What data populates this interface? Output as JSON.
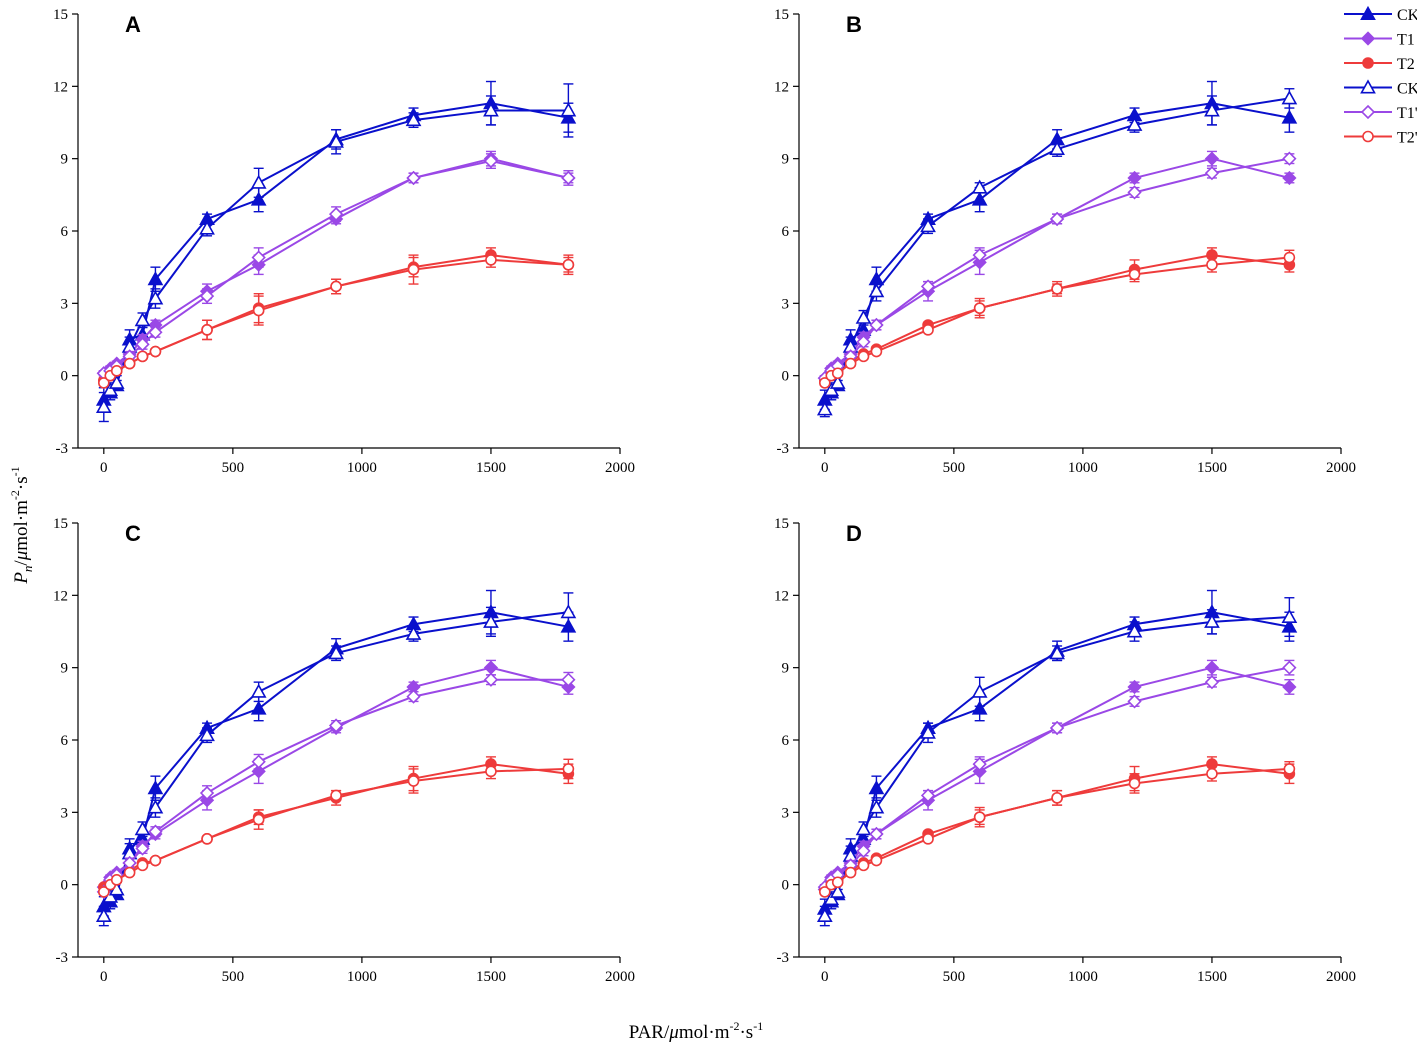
{
  "chart_data": {
    "type": "line",
    "xlabel": {
      "prefix": "PAR/",
      "mu": "μ",
      "unit": "mol·m",
      "exp1": "-2",
      "mid": "·s",
      "exp2": "-1"
    },
    "ylabel": {
      "symbol": "P",
      "sub": "n",
      "slash": "/",
      "mu": "μ",
      "unit": "mol·m",
      "exp1": "-2",
      "mid": "·s",
      "exp2": "-1"
    },
    "xlim": [
      -100,
      2000
    ],
    "ylim": [
      -3,
      15
    ],
    "xticks": [
      0,
      500,
      1000,
      1500,
      2000
    ],
    "yticks": [
      -3,
      0,
      3,
      6,
      9,
      12,
      15
    ],
    "legend": {
      "position": "top-right",
      "entries": [
        {
          "label": "CK",
          "series": "CK"
        },
        {
          "label": "T1",
          "series": "T1"
        },
        {
          "label": "T2",
          "series": "T2"
        },
        {
          "label": "CK'",
          "series": "CKp"
        },
        {
          "label": "T1'",
          "series": "T1p"
        },
        {
          "label": "T2'",
          "series": "T2p"
        }
      ]
    },
    "series_style": {
      "CK": {
        "color": "#0a10cc",
        "marker": "triangle",
        "filled": true
      },
      "T1": {
        "color": "#9a48e6",
        "marker": "diamond",
        "filled": true
      },
      "T2": {
        "color": "#ee3b3b",
        "marker": "circle",
        "filled": true
      },
      "CKp": {
        "color": "#0a10cc",
        "marker": "triangle",
        "filled": false
      },
      "T1p": {
        "color": "#9a48e6",
        "marker": "diamond",
        "filled": false
      },
      "T2p": {
        "color": "#ee3b3b",
        "marker": "circle",
        "filled": false
      }
    },
    "x": [
      0,
      25,
      50,
      100,
      150,
      200,
      400,
      600,
      900,
      1200,
      1500,
      1800
    ],
    "panels": [
      {
        "label": "A",
        "series": [
          {
            "name": "CK",
            "values": [
              -1.0,
              -0.7,
              -0.4,
              1.5,
              1.7,
              4.0,
              6.5,
              7.3,
              9.8,
              10.8,
              11.3,
              10.7
            ],
            "errors": [
              0.5,
              0.3,
              0.2,
              0.4,
              0.3,
              0.5,
              0.2,
              0.5,
              0.4,
              0.3,
              0.9,
              0.6
            ]
          },
          {
            "name": "T1",
            "values": [
              0.1,
              0.3,
              0.5,
              0.9,
              1.5,
              2.1,
              3.5,
              4.6,
              6.5,
              8.2,
              9.0,
              8.2
            ],
            "errors": [
              0.1,
              0.1,
              0.1,
              0.2,
              0.2,
              0.2,
              0.3,
              0.4,
              0.2,
              0.2,
              0.3,
              0.3
            ]
          },
          {
            "name": "T2",
            "values": [
              -0.2,
              0.0,
              0.2,
              0.5,
              0.8,
              1.0,
              1.9,
              2.8,
              3.7,
              4.5,
              5.0,
              4.6
            ],
            "errors": [
              0.1,
              0.1,
              0.1,
              0.1,
              0.1,
              0.1,
              0.4,
              0.6,
              0.3,
              0.4,
              0.3,
              0.3
            ]
          },
          {
            "name": "CKp",
            "values": [
              -1.3,
              -0.6,
              -0.3,
              1.2,
              2.3,
              3.2,
              6.1,
              8.0,
              9.7,
              10.6,
              11.0,
              11.0
            ],
            "errors": [
              0.6,
              0.3,
              0.3,
              0.4,
              0.3,
              0.4,
              0.3,
              0.6,
              0.5,
              0.3,
              0.6,
              1.1
            ]
          },
          {
            "name": "T1p",
            "values": [
              0.1,
              0.2,
              0.4,
              0.8,
              1.3,
              1.8,
              3.3,
              4.9,
              6.7,
              8.2,
              8.9,
              8.2
            ],
            "errors": [
              0.1,
              0.1,
              0.1,
              0.2,
              0.2,
              0.2,
              0.3,
              0.4,
              0.3,
              0.2,
              0.3,
              0.2
            ]
          },
          {
            "name": "T2p",
            "values": [
              -0.3,
              0.0,
              0.2,
              0.5,
              0.8,
              1.0,
              1.9,
              2.7,
              3.7,
              4.4,
              4.8,
              4.6
            ],
            "errors": [
              0.1,
              0.1,
              0.1,
              0.1,
              0.1,
              0.1,
              0.4,
              0.6,
              0.3,
              0.6,
              0.3,
              0.4
            ]
          }
        ]
      },
      {
        "label": "B",
        "series": [
          {
            "name": "CK",
            "values": [
              -1.0,
              -0.7,
              -0.4,
              1.5,
              1.9,
              4.0,
              6.5,
              7.3,
              9.8,
              10.8,
              11.3,
              10.7
            ],
            "errors": [
              0.4,
              0.3,
              0.2,
              0.4,
              0.3,
              0.5,
              0.2,
              0.5,
              0.4,
              0.3,
              0.9,
              0.6
            ]
          },
          {
            "name": "T1",
            "values": [
              -0.1,
              0.3,
              0.5,
              0.9,
              1.6,
              2.1,
              3.5,
              4.7,
              6.5,
              8.2,
              9.0,
              8.2
            ],
            "errors": [
              0.1,
              0.1,
              0.1,
              0.2,
              0.2,
              0.2,
              0.4,
              0.5,
              0.2,
              0.2,
              0.3,
              0.2
            ]
          },
          {
            "name": "T2",
            "values": [
              -0.2,
              0.0,
              0.2,
              0.6,
              0.9,
              1.1,
              2.1,
              2.8,
              3.6,
              4.4,
              5.0,
              4.6
            ],
            "errors": [
              0.1,
              0.1,
              0.1,
              0.1,
              0.1,
              0.1,
              0.1,
              0.3,
              0.3,
              0.4,
              0.3,
              0.3
            ]
          },
          {
            "name": "CKp",
            "values": [
              -1.4,
              -0.6,
              -0.3,
              1.2,
              2.4,
              3.5,
              6.2,
              7.8,
              9.4,
              10.4,
              11.0,
              11.5
            ],
            "errors": [
              0.3,
              0.3,
              0.3,
              0.4,
              0.3,
              0.4,
              0.3,
              0.2,
              0.3,
              0.3,
              0.6,
              0.4
            ]
          },
          {
            "name": "T1p",
            "values": [
              -0.1,
              0.2,
              0.4,
              0.8,
              1.4,
              2.1,
              3.7,
              5.0,
              6.5,
              7.6,
              8.4,
              9.0
            ],
            "errors": [
              0.1,
              0.1,
              0.1,
              0.2,
              0.2,
              0.2,
              0.2,
              0.3,
              0.2,
              0.2,
              0.2,
              0.2
            ]
          },
          {
            "name": "T2p",
            "values": [
              -0.3,
              0.0,
              0.1,
              0.5,
              0.8,
              1.0,
              1.9,
              2.8,
              3.6,
              4.2,
              4.6,
              4.9
            ],
            "errors": [
              0.1,
              0.1,
              0.1,
              0.1,
              0.1,
              0.1,
              0.1,
              0.4,
              0.2,
              0.3,
              0.3,
              0.3
            ]
          }
        ]
      },
      {
        "label": "C",
        "series": [
          {
            "name": "CK",
            "values": [
              -0.9,
              -0.7,
              -0.4,
              1.5,
              1.9,
              4.0,
              6.5,
              7.3,
              9.8,
              10.8,
              11.3,
              10.7
            ],
            "errors": [
              0.4,
              0.3,
              0.2,
              0.4,
              0.3,
              0.5,
              0.2,
              0.5,
              0.4,
              0.3,
              0.9,
              0.6
            ]
          },
          {
            "name": "T1",
            "values": [
              -0.1,
              0.3,
              0.5,
              0.9,
              1.6,
              2.1,
              3.5,
              4.7,
              6.5,
              8.2,
              9.0,
              8.2
            ],
            "errors": [
              0.1,
              0.1,
              0.1,
              0.2,
              0.2,
              0.2,
              0.4,
              0.5,
              0.2,
              0.2,
              0.3,
              0.3
            ]
          },
          {
            "name": "T2",
            "values": [
              -0.1,
              0.1,
              0.2,
              0.6,
              0.9,
              1.0,
              1.9,
              2.8,
              3.6,
              4.4,
              5.0,
              4.6
            ],
            "errors": [
              0.1,
              0.1,
              0.1,
              0.1,
              0.1,
              0.1,
              0.1,
              0.3,
              0.3,
              0.5,
              0.3,
              0.4
            ]
          },
          {
            "name": "CKp",
            "values": [
              -1.3,
              -0.5,
              -0.2,
              1.3,
              2.3,
              3.2,
              6.2,
              8.0,
              9.6,
              10.4,
              10.9,
              11.3
            ],
            "errors": [
              0.4,
              0.3,
              0.3,
              0.4,
              0.3,
              0.4,
              0.3,
              0.4,
              0.3,
              0.3,
              0.6,
              0.8
            ]
          },
          {
            "name": "T1p",
            "values": [
              -0.3,
              0.2,
              0.4,
              0.9,
              1.5,
              2.2,
              3.8,
              5.1,
              6.6,
              7.8,
              8.5,
              8.5
            ],
            "errors": [
              0.1,
              0.1,
              0.1,
              0.2,
              0.2,
              0.2,
              0.3,
              0.3,
              0.2,
              0.2,
              0.2,
              0.3
            ]
          },
          {
            "name": "T2p",
            "values": [
              -0.3,
              0.0,
              0.2,
              0.5,
              0.8,
              1.0,
              1.9,
              2.7,
              3.7,
              4.3,
              4.7,
              4.8
            ],
            "errors": [
              0.1,
              0.1,
              0.1,
              0.1,
              0.1,
              0.1,
              0.1,
              0.4,
              0.2,
              0.5,
              0.3,
              0.4
            ]
          }
        ]
      },
      {
        "label": "D",
        "series": [
          {
            "name": "CK",
            "values": [
              -1.0,
              -0.7,
              -0.4,
              1.5,
              1.9,
              4.0,
              6.5,
              7.3,
              9.7,
              10.8,
              11.3,
              10.7
            ],
            "errors": [
              0.4,
              0.3,
              0.2,
              0.4,
              0.3,
              0.5,
              0.2,
              0.5,
              0.4,
              0.3,
              0.9,
              0.6
            ]
          },
          {
            "name": "T1",
            "values": [
              -0.2,
              0.3,
              0.5,
              0.9,
              1.6,
              2.1,
              3.5,
              4.7,
              6.5,
              8.2,
              9.0,
              8.2
            ],
            "errors": [
              0.1,
              0.1,
              0.1,
              0.2,
              0.2,
              0.2,
              0.4,
              0.5,
              0.2,
              0.2,
              0.3,
              0.3
            ]
          },
          {
            "name": "T2",
            "values": [
              -0.2,
              0.0,
              0.2,
              0.6,
              0.9,
              1.1,
              2.1,
              2.8,
              3.6,
              4.4,
              5.0,
              4.6
            ],
            "errors": [
              0.1,
              0.1,
              0.1,
              0.1,
              0.1,
              0.1,
              0.1,
              0.3,
              0.3,
              0.5,
              0.3,
              0.4
            ]
          },
          {
            "name": "CKp",
            "values": [
              -1.3,
              -0.6,
              -0.3,
              1.2,
              2.3,
              3.2,
              6.3,
              8.0,
              9.6,
              10.5,
              10.9,
              11.1
            ],
            "errors": [
              0.4,
              0.3,
              0.3,
              0.4,
              0.3,
              0.4,
              0.4,
              0.6,
              0.3,
              0.4,
              0.5,
              0.8
            ]
          },
          {
            "name": "T1p",
            "values": [
              -0.1,
              0.2,
              0.4,
              0.8,
              1.4,
              2.1,
              3.7,
              5.0,
              6.5,
              7.6,
              8.4,
              9.0
            ],
            "errors": [
              0.1,
              0.1,
              0.1,
              0.2,
              0.2,
              0.2,
              0.2,
              0.3,
              0.2,
              0.2,
              0.2,
              0.3
            ]
          },
          {
            "name": "T2p",
            "values": [
              -0.3,
              0.0,
              0.1,
              0.5,
              0.8,
              1.0,
              1.9,
              2.8,
              3.6,
              4.2,
              4.6,
              4.8
            ],
            "errors": [
              0.1,
              0.1,
              0.1,
              0.1,
              0.1,
              0.1,
              0.1,
              0.4,
              0.3,
              0.4,
              0.3,
              0.3
            ]
          }
        ]
      }
    ]
  }
}
